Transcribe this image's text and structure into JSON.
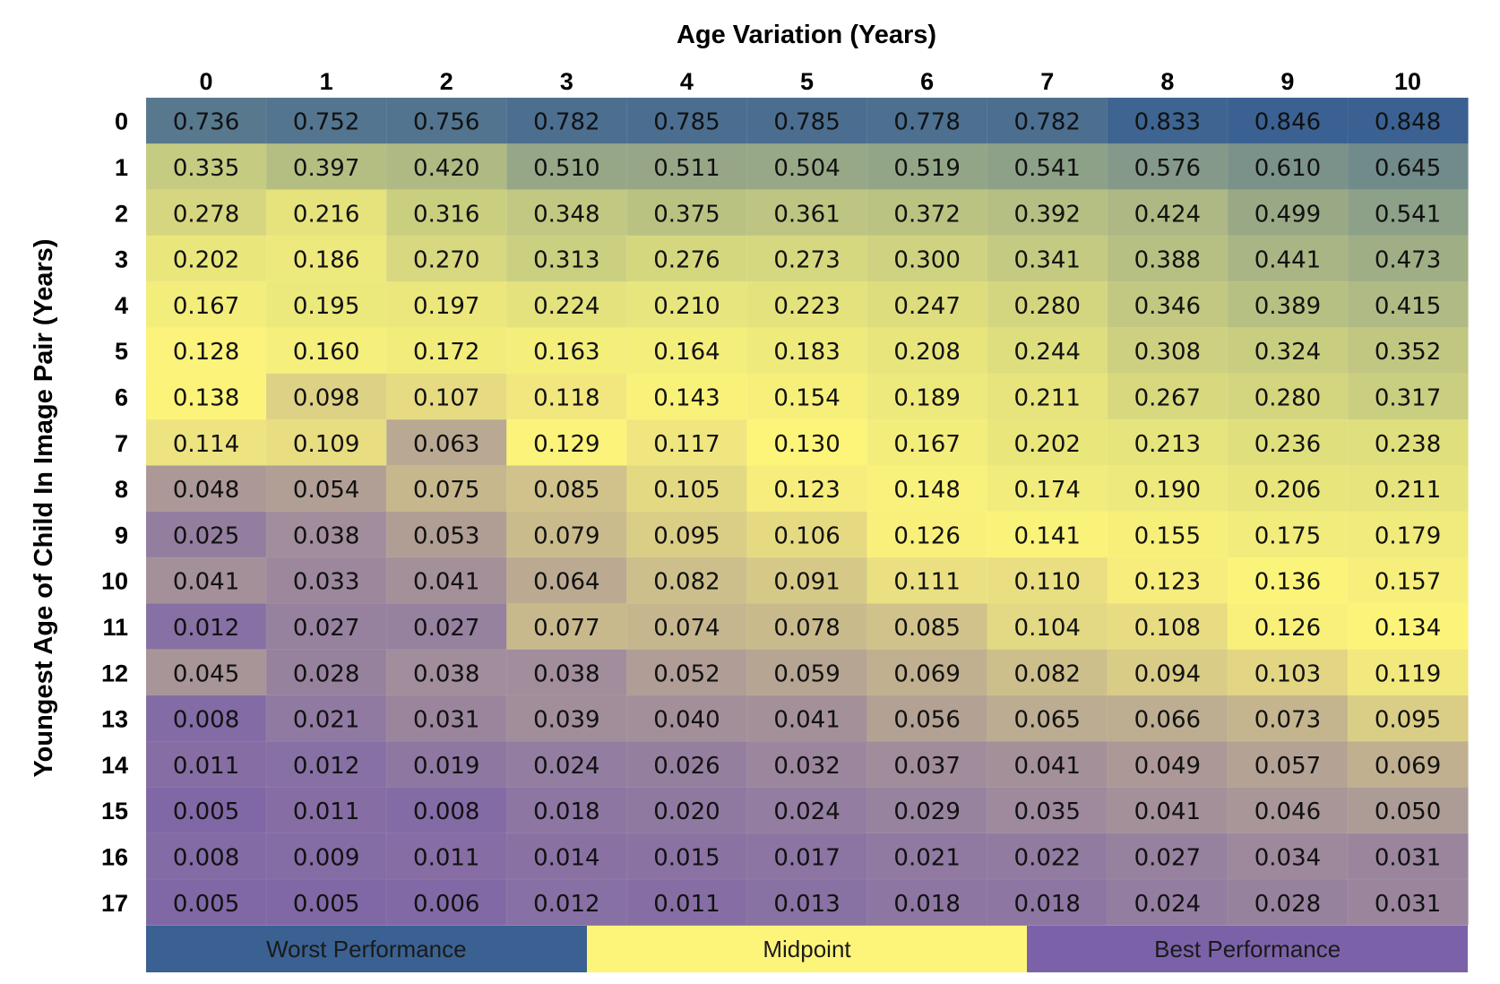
{
  "chart_data": {
    "type": "heatmap",
    "xlabel": "Age Variation (Years)",
    "ylabel": "Youngest Age of Child In Image Pair (Years)",
    "x": [
      "0",
      "1",
      "2",
      "3",
      "4",
      "5",
      "6",
      "7",
      "8",
      "9",
      "10"
    ],
    "y": [
      "0",
      "1",
      "2",
      "3",
      "4",
      "5",
      "6",
      "7",
      "8",
      "9",
      "10",
      "11",
      "12",
      "13",
      "14",
      "15",
      "16",
      "17"
    ],
    "values": [
      [
        "0.736",
        "0.752",
        "0.756",
        "0.782",
        "0.785",
        "0.785",
        "0.778",
        "0.782",
        "0.833",
        "0.846",
        "0.848"
      ],
      [
        "0.335",
        "0.397",
        "0.420",
        "0.510",
        "0.511",
        "0.504",
        "0.519",
        "0.541",
        "0.576",
        "0.610",
        "0.645"
      ],
      [
        "0.278",
        "0.216",
        "0.316",
        "0.348",
        "0.375",
        "0.361",
        "0.372",
        "0.392",
        "0.424",
        "0.499",
        "0.541"
      ],
      [
        "0.202",
        "0.186",
        "0.270",
        "0.313",
        "0.276",
        "0.273",
        "0.300",
        "0.341",
        "0.388",
        "0.441",
        "0.473"
      ],
      [
        "0.167",
        "0.195",
        "0.197",
        "0.224",
        "0.210",
        "0.223",
        "0.247",
        "0.280",
        "0.346",
        "0.389",
        "0.415"
      ],
      [
        "0.128",
        "0.160",
        "0.172",
        "0.163",
        "0.164",
        "0.183",
        "0.208",
        "0.244",
        "0.308",
        "0.324",
        "0.352"
      ],
      [
        "0.138",
        "0.098",
        "0.107",
        "0.118",
        "0.143",
        "0.154",
        "0.189",
        "0.211",
        "0.267",
        "0.280",
        "0.317"
      ],
      [
        "0.114",
        "0.109",
        "0.063",
        "0.129",
        "0.117",
        "0.130",
        "0.167",
        "0.202",
        "0.213",
        "0.236",
        "0.238"
      ],
      [
        "0.048",
        "0.054",
        "0.075",
        "0.085",
        "0.105",
        "0.123",
        "0.148",
        "0.174",
        "0.190",
        "0.206",
        "0.211"
      ],
      [
        "0.025",
        "0.038",
        "0.053",
        "0.079",
        "0.095",
        "0.106",
        "0.126",
        "0.141",
        "0.155",
        "0.175",
        "0.179"
      ],
      [
        "0.041",
        "0.033",
        "0.041",
        "0.064",
        "0.082",
        "0.091",
        "0.111",
        "0.110",
        "0.123",
        "0.136",
        "0.157"
      ],
      [
        "0.012",
        "0.027",
        "0.027",
        "0.077",
        "0.074",
        "0.078",
        "0.085",
        "0.104",
        "0.108",
        "0.126",
        "0.134"
      ],
      [
        "0.045",
        "0.028",
        "0.038",
        "0.038",
        "0.052",
        "0.059",
        "0.069",
        "0.082",
        "0.094",
        "0.103",
        "0.119"
      ],
      [
        "0.008",
        "0.021",
        "0.031",
        "0.039",
        "0.040",
        "0.041",
        "0.056",
        "0.065",
        "0.066",
        "0.073",
        "0.095"
      ],
      [
        "0.011",
        "0.012",
        "0.019",
        "0.024",
        "0.026",
        "0.032",
        "0.037",
        "0.041",
        "0.049",
        "0.057",
        "0.069"
      ],
      [
        "0.005",
        "0.011",
        "0.008",
        "0.018",
        "0.020",
        "0.024",
        "0.029",
        "0.035",
        "0.041",
        "0.046",
        "0.050"
      ],
      [
        "0.008",
        "0.009",
        "0.011",
        "0.014",
        "0.015",
        "0.017",
        "0.021",
        "0.022",
        "0.027",
        "0.034",
        "0.031"
      ],
      [
        "0.005",
        "0.005",
        "0.006",
        "0.012",
        "0.011",
        "0.013",
        "0.018",
        "0.018",
        "0.024",
        "0.028",
        "0.031"
      ]
    ],
    "color_scale": {
      "best": "#7b62a8",
      "midpoint": "#fdf57a",
      "worst": "#3a6192",
      "midpoint_value": 0.13,
      "max_value": 0.848
    },
    "legend": [
      {
        "label": "Worst Performance",
        "color": "#3a6192"
      },
      {
        "label": "Midpoint",
        "color": "#fdf57a"
      },
      {
        "label": "Best Performance",
        "color": "#7b62a8"
      }
    ]
  }
}
